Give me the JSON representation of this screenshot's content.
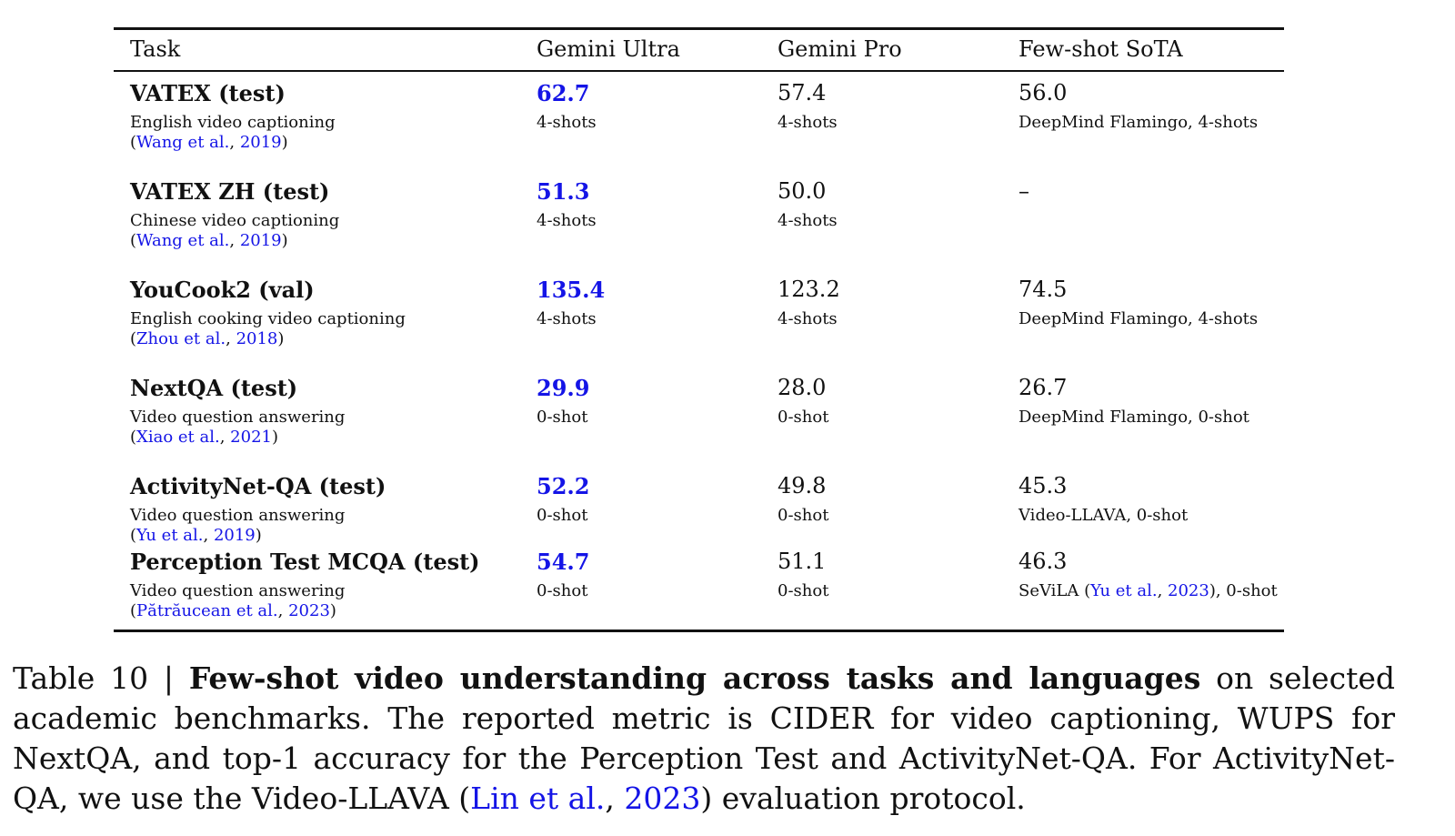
{
  "table": {
    "columns": [
      "Task",
      "Gemini Ultra",
      "Gemini Pro",
      "Few-shot SoTA"
    ],
    "rows": [
      {
        "task": "VATEX (test)",
        "desc": "English video captioning",
        "cite": {
          "pre": "(",
          "link": "Wang et al.",
          "sep": ", ",
          "year": "2019",
          "post": ")"
        },
        "ultra": {
          "value": "62.7",
          "shots": "4-shots"
        },
        "pro": {
          "value": "57.4",
          "shots": "4-shots"
        },
        "sota": {
          "value": "56.0",
          "note": "DeepMind Flamingo, 4-shots"
        }
      },
      {
        "task": "VATEX ZH (test)",
        "desc": "Chinese video captioning",
        "cite": {
          "pre": "(",
          "link": "Wang et al.",
          "sep": ", ",
          "year": "2019",
          "post": ")"
        },
        "ultra": {
          "value": "51.3",
          "shots": "4-shots"
        },
        "pro": {
          "value": "50.0",
          "shots": "4-shots"
        },
        "sota": {
          "value": "–",
          "note": ""
        }
      },
      {
        "task": "YouCook2 (val)",
        "desc": "English cooking video captioning",
        "cite": {
          "pre": "(",
          "link": "Zhou et al.",
          "sep": ", ",
          "year": "2018",
          "post": ")"
        },
        "ultra": {
          "value": "135.4",
          "shots": "4-shots"
        },
        "pro": {
          "value": "123.2",
          "shots": "4-shots"
        },
        "sota": {
          "value": "74.5",
          "note": "DeepMind Flamingo, 4-shots"
        }
      },
      {
        "task": "NextQA (test)",
        "desc": "Video question answering",
        "cite": {
          "pre": "(",
          "link": "Xiao et al.",
          "sep": ", ",
          "year": "2021",
          "post": ")"
        },
        "ultra": {
          "value": "29.9",
          "shots": "0-shot"
        },
        "pro": {
          "value": "28.0",
          "shots": "0-shot"
        },
        "sota": {
          "value": "26.7",
          "note": "DeepMind Flamingo, 0-shot"
        }
      },
      {
        "task": "ActivityNet-QA (test)",
        "desc": "Video question answering",
        "cite": {
          "pre": "(",
          "link": "Yu et al.",
          "sep": ", ",
          "year": "2019",
          "post": ")"
        },
        "ultra": {
          "value": "52.2",
          "shots": "0-shot"
        },
        "pro": {
          "value": "49.8",
          "shots": "0-shot"
        },
        "sota": {
          "value": "45.3",
          "note": "Video-LLAVA, 0-shot"
        }
      },
      {
        "task": "Perception Test MCQA (test)",
        "desc": "Video question answering",
        "cite": {
          "pre": "(",
          "link": "Pătrăucean et al.",
          "sep": ", ",
          "year": "2023",
          "post": ")"
        },
        "ultra": {
          "value": "54.7",
          "shots": "0-shot"
        },
        "pro": {
          "value": "51.1",
          "shots": "0-shot"
        },
        "sota": {
          "value": "46.3",
          "note_pre": "SeViLA (",
          "note_link": "Yu et al.",
          "note_sep": ", ",
          "note_year": "2023",
          "note_post": "), 0-shot"
        }
      }
    ]
  },
  "caption": {
    "label": "Table 10 | ",
    "bold": "Few-shot video understanding across tasks and languages",
    "text": " on selected academic benchmarks.  The reported metric is CIDER for video captioning, WUPS for NextQA, and top-1 accuracy for the Perception Test and ActivityNet-QA. For ActivityNet-QA, we use the Video-LLAVA ",
    "cite_pre": "(",
    "cite_link": "Lin et al.",
    "cite_sep": ", ",
    "cite_year": "2023",
    "cite_post": ") evaluation protocol."
  },
  "colors": {
    "highlight": "#1414e6",
    "text": "#111111"
  }
}
